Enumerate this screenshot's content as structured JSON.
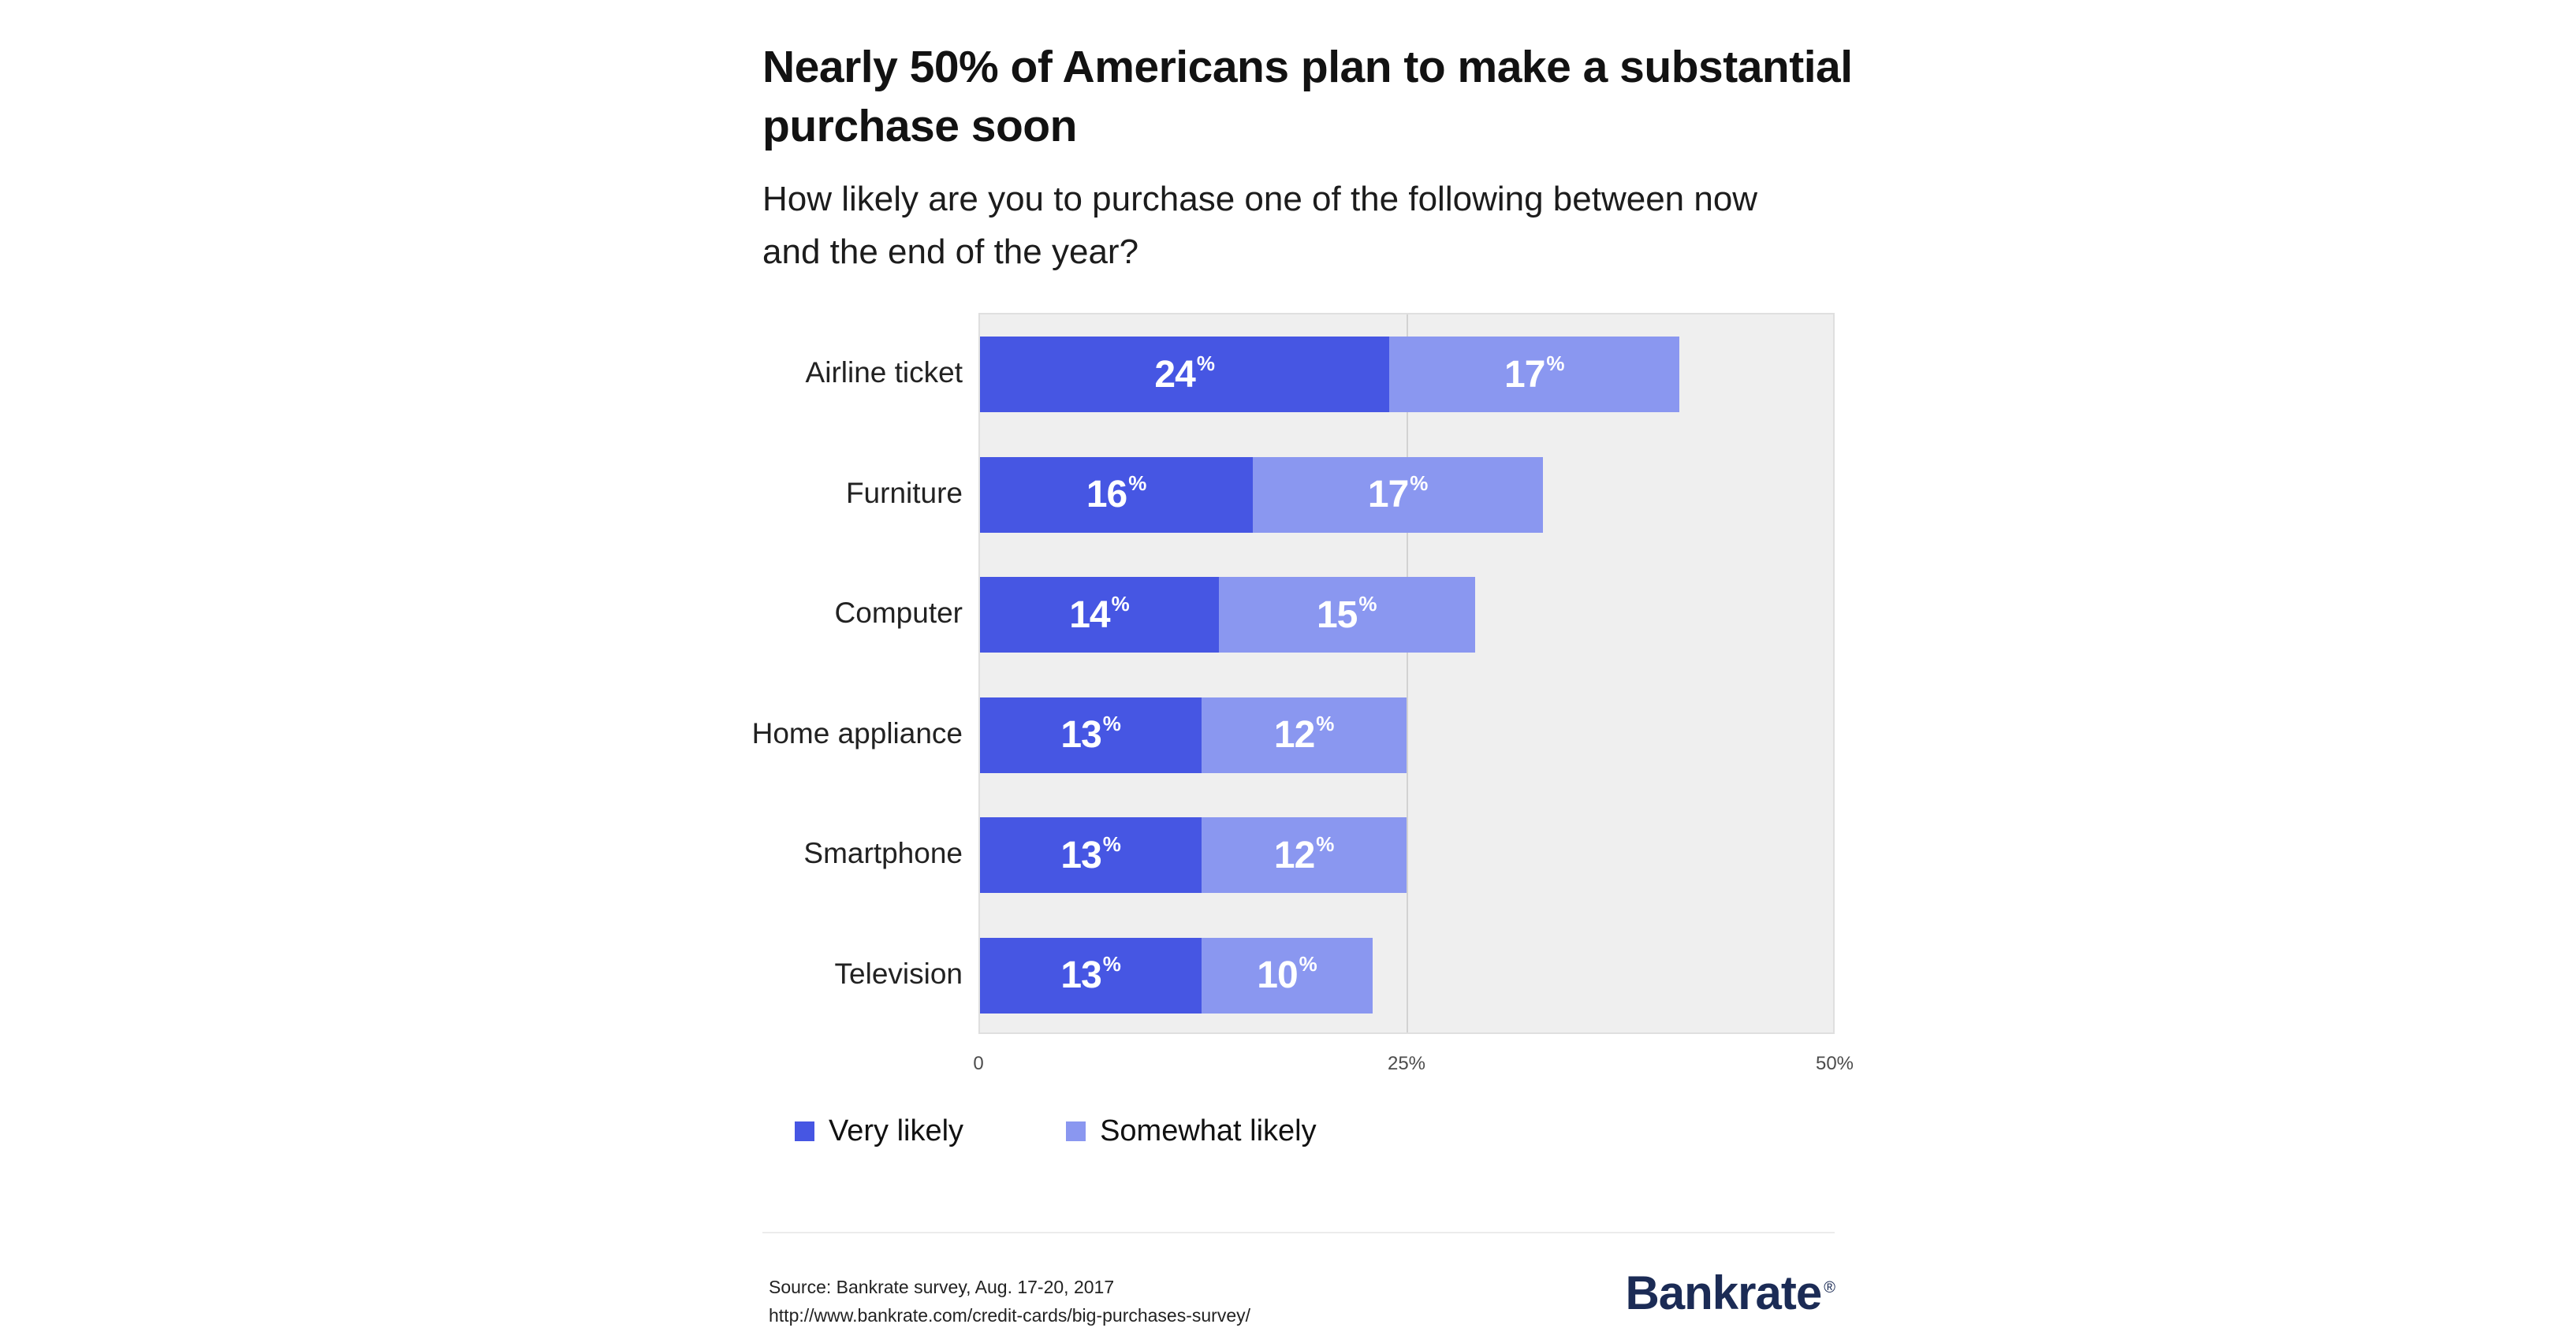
{
  "title": "Nearly 50% of Americans plan to make a substantial purchase soon",
  "subtitle": "How likely are you to purchase one of the following between now and the end of the year?",
  "chart_data": {
    "type": "bar",
    "orientation": "horizontal",
    "stacked": true,
    "title": "Nearly 50% of Americans plan to make a substantial purchase soon",
    "subtitle": "How likely are you to purchase one of the following between now and the end of the year?",
    "categories": [
      "Airline ticket",
      "Furniture",
      "Computer",
      "Home appliance",
      "Smartphone",
      "Television"
    ],
    "series": [
      {
        "name": "Very likely",
        "color": "#4656e3",
        "values": [
          24,
          16,
          14,
          13,
          13,
          13
        ]
      },
      {
        "name": "Somewhat likely",
        "color": "#8a97f0",
        "values": [
          17,
          17,
          15,
          12,
          12,
          10
        ]
      }
    ],
    "value_suffix": "%",
    "xlim": [
      0,
      50
    ],
    "x_ticks": [
      "0",
      "25%",
      "50%"
    ],
    "grid": "vertical-at-25",
    "plot_background": "#efefef",
    "legend_position": "bottom-left"
  },
  "legend": [
    {
      "label": "Very likely",
      "color": "#4656e3"
    },
    {
      "label": "Somewhat likely",
      "color": "#8a97f0"
    }
  ],
  "footer": {
    "source_line1": "Source: Bankrate survey, Aug. 17-20, 2017",
    "source_line2": "http://www.bankrate.com/credit-cards/big-purchases-survey/",
    "brand": "Bankrate",
    "brand_mark": "®"
  }
}
